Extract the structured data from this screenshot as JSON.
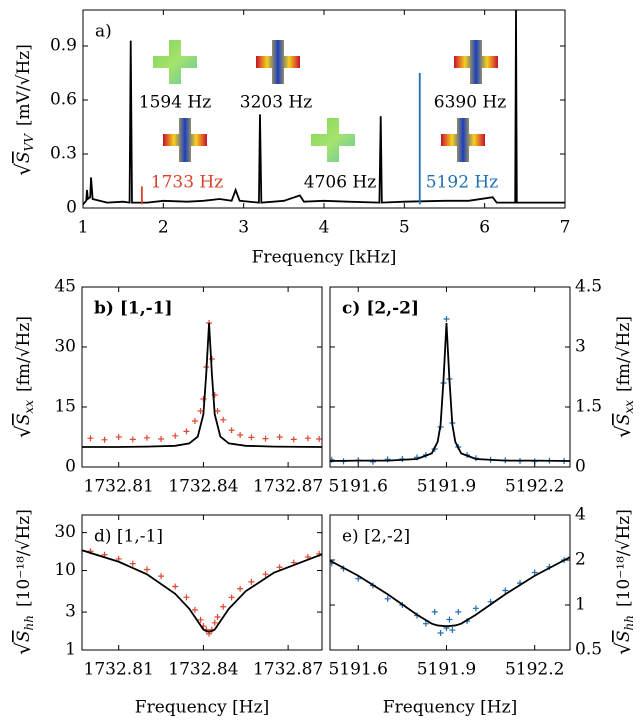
{
  "chart_data": [
    {
      "type": "line",
      "label": "a)",
      "xlabel": "Frequency [kHz]",
      "ylabel": {
        "root": "√",
        "symbol": "S",
        "sub": "VV",
        "unit": "[mV/√Hz]"
      },
      "xlim": [
        1,
        7
      ],
      "ylim": [
        0,
        1.1
      ],
      "xticks": [
        1,
        2,
        3,
        4,
        5,
        6,
        7
      ],
      "yticks": [
        0,
        0.3,
        0.6,
        0.9
      ],
      "y_axis_side": "left",
      "ylog": false,
      "series": [
        {
          "style": "line",
          "color": "#000000",
          "x": [
            1.0,
            1.04,
            1.05,
            1.06,
            1.09,
            1.1,
            1.12,
            1.3,
            1.5,
            1.58,
            1.594,
            1.61,
            1.8,
            2.0,
            2.3,
            2.5,
            2.7,
            2.85,
            2.9,
            2.95,
            3.19,
            3.203,
            3.22,
            3.5,
            3.7,
            3.75,
            4.0,
            4.3,
            4.69,
            4.706,
            4.72,
            5.0,
            5.5,
            5.8,
            6.1,
            6.15,
            6.38,
            6.39,
            6.4,
            6.7,
            7.0
          ],
          "values": [
            0.02,
            0.04,
            0.1,
            0.05,
            0.06,
            0.17,
            0.05,
            0.03,
            0.035,
            0.03,
            0.93,
            0.03,
            0.03,
            0.04,
            0.035,
            0.04,
            0.05,
            0.04,
            0.1,
            0.04,
            0.03,
            0.52,
            0.03,
            0.04,
            0.07,
            0.035,
            0.04,
            0.035,
            0.03,
            0.51,
            0.03,
            0.035,
            0.04,
            0.04,
            0.06,
            0.03,
            0.03,
            1.1,
            0.03,
            0.03,
            0.03
          ]
        },
        {
          "style": "line",
          "color": "#d9412b",
          "x": [
            1.733,
            1.733
          ],
          "values": [
            0.02,
            0.12
          ]
        },
        {
          "style": "line",
          "color": "#1f6fb5",
          "x": [
            5.192,
            5.192
          ],
          "values": [
            0.02,
            0.75
          ]
        }
      ],
      "annotations": [
        {
          "text": "1594 Hz",
          "color": "#000000"
        },
        {
          "text": "3203 Hz",
          "color": "#000000"
        },
        {
          "text": "6390 Hz",
          "color": "#000000"
        },
        {
          "text": "1733 Hz",
          "color": "#d9412b"
        },
        {
          "text": "4706 Hz",
          "color": "#000000"
        },
        {
          "text": "5192 Hz",
          "color": "#1f6fb5"
        }
      ]
    },
    {
      "type": "scatter",
      "label": "b) [1,-1]",
      "ylabel": {
        "root": "√",
        "symbol": "S",
        "sub": "xx",
        "unit": "[fm/√Hz]"
      },
      "xlim": [
        1732.797,
        1732.882
      ],
      "ylim": [
        0,
        45
      ],
      "xticks": [
        1732.81,
        1732.84,
        1732.87
      ],
      "yticks": [
        0,
        15,
        30,
        45
      ],
      "y_axis_side": "left",
      "ylog": false,
      "series": [
        {
          "style": "markers",
          "color": "#e0462f",
          "x": [
            1732.8,
            1732.805,
            1732.81,
            1732.815,
            1732.82,
            1732.825,
            1732.83,
            1732.834,
            1732.837,
            1732.839,
            1732.84,
            1732.841,
            1732.842,
            1732.843,
            1732.844,
            1732.845,
            1732.847,
            1732.85,
            1732.853,
            1732.857,
            1732.862,
            1732.867,
            1732.872,
            1732.877,
            1732.881
          ],
          "values": [
            7.2,
            6.8,
            7.5,
            6.9,
            7.3,
            7.0,
            7.8,
            8.9,
            11.5,
            14,
            17,
            25,
            36,
            27,
            18,
            14,
            11.8,
            9.2,
            8,
            7.4,
            7.1,
            7.5,
            6.9,
            7.2,
            7.0
          ]
        },
        {
          "style": "line",
          "color": "#000000",
          "x": [
            1732.797,
            1732.81,
            1732.82,
            1732.83,
            1732.835,
            1732.838,
            1732.84,
            1732.841,
            1732.842,
            1732.843,
            1732.844,
            1732.846,
            1732.849,
            1732.855,
            1732.865,
            1732.882
          ],
          "values": [
            5.0,
            5.0,
            5.1,
            5.3,
            5.9,
            7.6,
            13.2,
            23.3,
            36,
            23.3,
            13.2,
            7.6,
            5.9,
            5.3,
            5.1,
            5.0
          ]
        }
      ]
    },
    {
      "type": "scatter",
      "label": "c) [2,-2]",
      "ylabel": {
        "root": "√",
        "symbol": "S",
        "sub": "xx",
        "unit": "[fm/√Hz]"
      },
      "xlim": [
        5191.504,
        5192.32
      ],
      "ylim": [
        0,
        4.5
      ],
      "xticks": [
        5191.6,
        5191.9,
        5192.2
      ],
      "yticks": [
        0,
        1.5,
        3,
        4.5
      ],
      "y_axis_side": "right",
      "ylog": false,
      "series": [
        {
          "style": "markers",
          "color": "#1f6fb5",
          "x": [
            5191.51,
            5191.55,
            5191.6,
            5191.65,
            5191.7,
            5191.75,
            5191.8,
            5191.83,
            5191.86,
            5191.88,
            5191.89,
            5191.9,
            5191.91,
            5191.92,
            5191.94,
            5191.97,
            5192.0,
            5192.05,
            5192.1,
            5192.15,
            5192.2,
            5192.25,
            5192.3
          ],
          "values": [
            0.18,
            0.14,
            0.17,
            0.13,
            0.19,
            0.2,
            0.24,
            0.3,
            0.45,
            1.0,
            2.1,
            3.7,
            2.2,
            1.1,
            0.5,
            0.3,
            0.22,
            0.18,
            0.17,
            0.15,
            0.14,
            0.16,
            0.15
          ]
        },
        {
          "style": "line",
          "color": "#000000",
          "x": [
            5191.504,
            5191.6,
            5191.7,
            5191.8,
            5191.85,
            5191.87,
            5191.88,
            5191.89,
            5191.9,
            5191.91,
            5191.92,
            5191.93,
            5191.95,
            5192.0,
            5192.1,
            5192.2,
            5192.32
          ],
          "values": [
            0.15,
            0.16,
            0.16,
            0.2,
            0.34,
            0.63,
            1.06,
            2.19,
            3.6,
            2.19,
            1.06,
            0.63,
            0.34,
            0.2,
            0.16,
            0.16,
            0.15
          ]
        }
      ]
    },
    {
      "type": "scatter",
      "label": "d) [1,-1]",
      "xlabel": "Frequency [Hz]",
      "ylabel": {
        "root": "√",
        "symbol": "S",
        "sub": "hh",
        "unit": "[10⁻¹⁸/√Hz]"
      },
      "xlim": [
        1732.797,
        1732.882
      ],
      "ylim": [
        1,
        50
      ],
      "xticks": [
        1732.81,
        1732.84,
        1732.87
      ],
      "yticks": [
        1,
        3,
        10,
        30
      ],
      "y_axis_side": "left",
      "ylog": true,
      "series": [
        {
          "style": "markers",
          "color": "#e0462f",
          "x": [
            1732.8,
            1732.805,
            1732.81,
            1732.815,
            1732.82,
            1732.825,
            1732.83,
            1732.834,
            1732.837,
            1732.839,
            1732.84,
            1732.841,
            1732.842,
            1732.843,
            1732.844,
            1732.845,
            1732.847,
            1732.85,
            1732.853,
            1732.857,
            1732.862,
            1732.867,
            1732.872,
            1732.877,
            1732.881
          ],
          "values": [
            17.5,
            15.8,
            14,
            12.2,
            10.3,
            8.5,
            6.3,
            4.6,
            3.2,
            2.4,
            2.0,
            1.8,
            1.6,
            1.8,
            2.2,
            2.6,
            3.5,
            4.6,
            5.9,
            7.2,
            9.0,
            11.0,
            12.6,
            14.8,
            16.2
          ]
        },
        {
          "style": "line",
          "color": "#000000",
          "x": [
            1732.797,
            1732.81,
            1732.82,
            1732.83,
            1732.835,
            1732.838,
            1732.84,
            1732.841,
            1732.842,
            1732.843,
            1732.844,
            1732.846,
            1732.849,
            1732.855,
            1732.865,
            1732.882
          ],
          "values": [
            18,
            12.9,
            8.97,
            5.1,
            3.3,
            2.3,
            1.81,
            1.73,
            1.7,
            1.73,
            1.81,
            2.3,
            3.3,
            5.5,
            9.4,
            16
          ]
        }
      ]
    },
    {
      "type": "scatter",
      "label": "e) [2,-2]",
      "xlabel": "Frequency [Hz]",
      "ylabel": {
        "root": "√",
        "symbol": "S",
        "sub": "hh",
        "unit": "[10⁻¹⁸/√Hz]"
      },
      "xlim": [
        5191.504,
        5192.32
      ],
      "ylim": [
        0.5,
        4
      ],
      "xticks": [
        5191.6,
        5191.9,
        5192.2
      ],
      "yticks": [
        0.5,
        1,
        2,
        4
      ],
      "y_axis_side": "right",
      "ylog": true,
      "series": [
        {
          "style": "markers",
          "color": "#1f6fb5",
          "x": [
            5191.51,
            5191.55,
            5191.6,
            5191.65,
            5191.7,
            5191.75,
            5191.8,
            5191.83,
            5191.86,
            5191.88,
            5191.9,
            5191.91,
            5191.92,
            5191.94,
            5191.97,
            5192.0,
            5192.05,
            5192.1,
            5192.15,
            5192.2,
            5192.25,
            5192.3
          ],
          "values": [
            1.9,
            1.75,
            1.5,
            1.35,
            1.1,
            1.0,
            0.85,
            0.75,
            0.9,
            0.65,
            0.7,
            0.8,
            0.68,
            0.9,
            0.78,
            0.95,
            1.05,
            1.25,
            1.4,
            1.65,
            1.8,
            2.0
          ]
        },
        {
          "style": "line",
          "color": "#000000",
          "x": [
            5191.504,
            5191.6,
            5191.7,
            5191.8,
            5191.85,
            5191.87,
            5191.9,
            5191.93,
            5191.95,
            5192.0,
            5192.1,
            5192.2,
            5192.32
          ],
          "values": [
            1.98,
            1.57,
            1.18,
            0.86,
            0.75,
            0.73,
            0.72,
            0.73,
            0.75,
            0.86,
            1.18,
            1.57,
            2.09
          ]
        }
      ]
    }
  ]
}
